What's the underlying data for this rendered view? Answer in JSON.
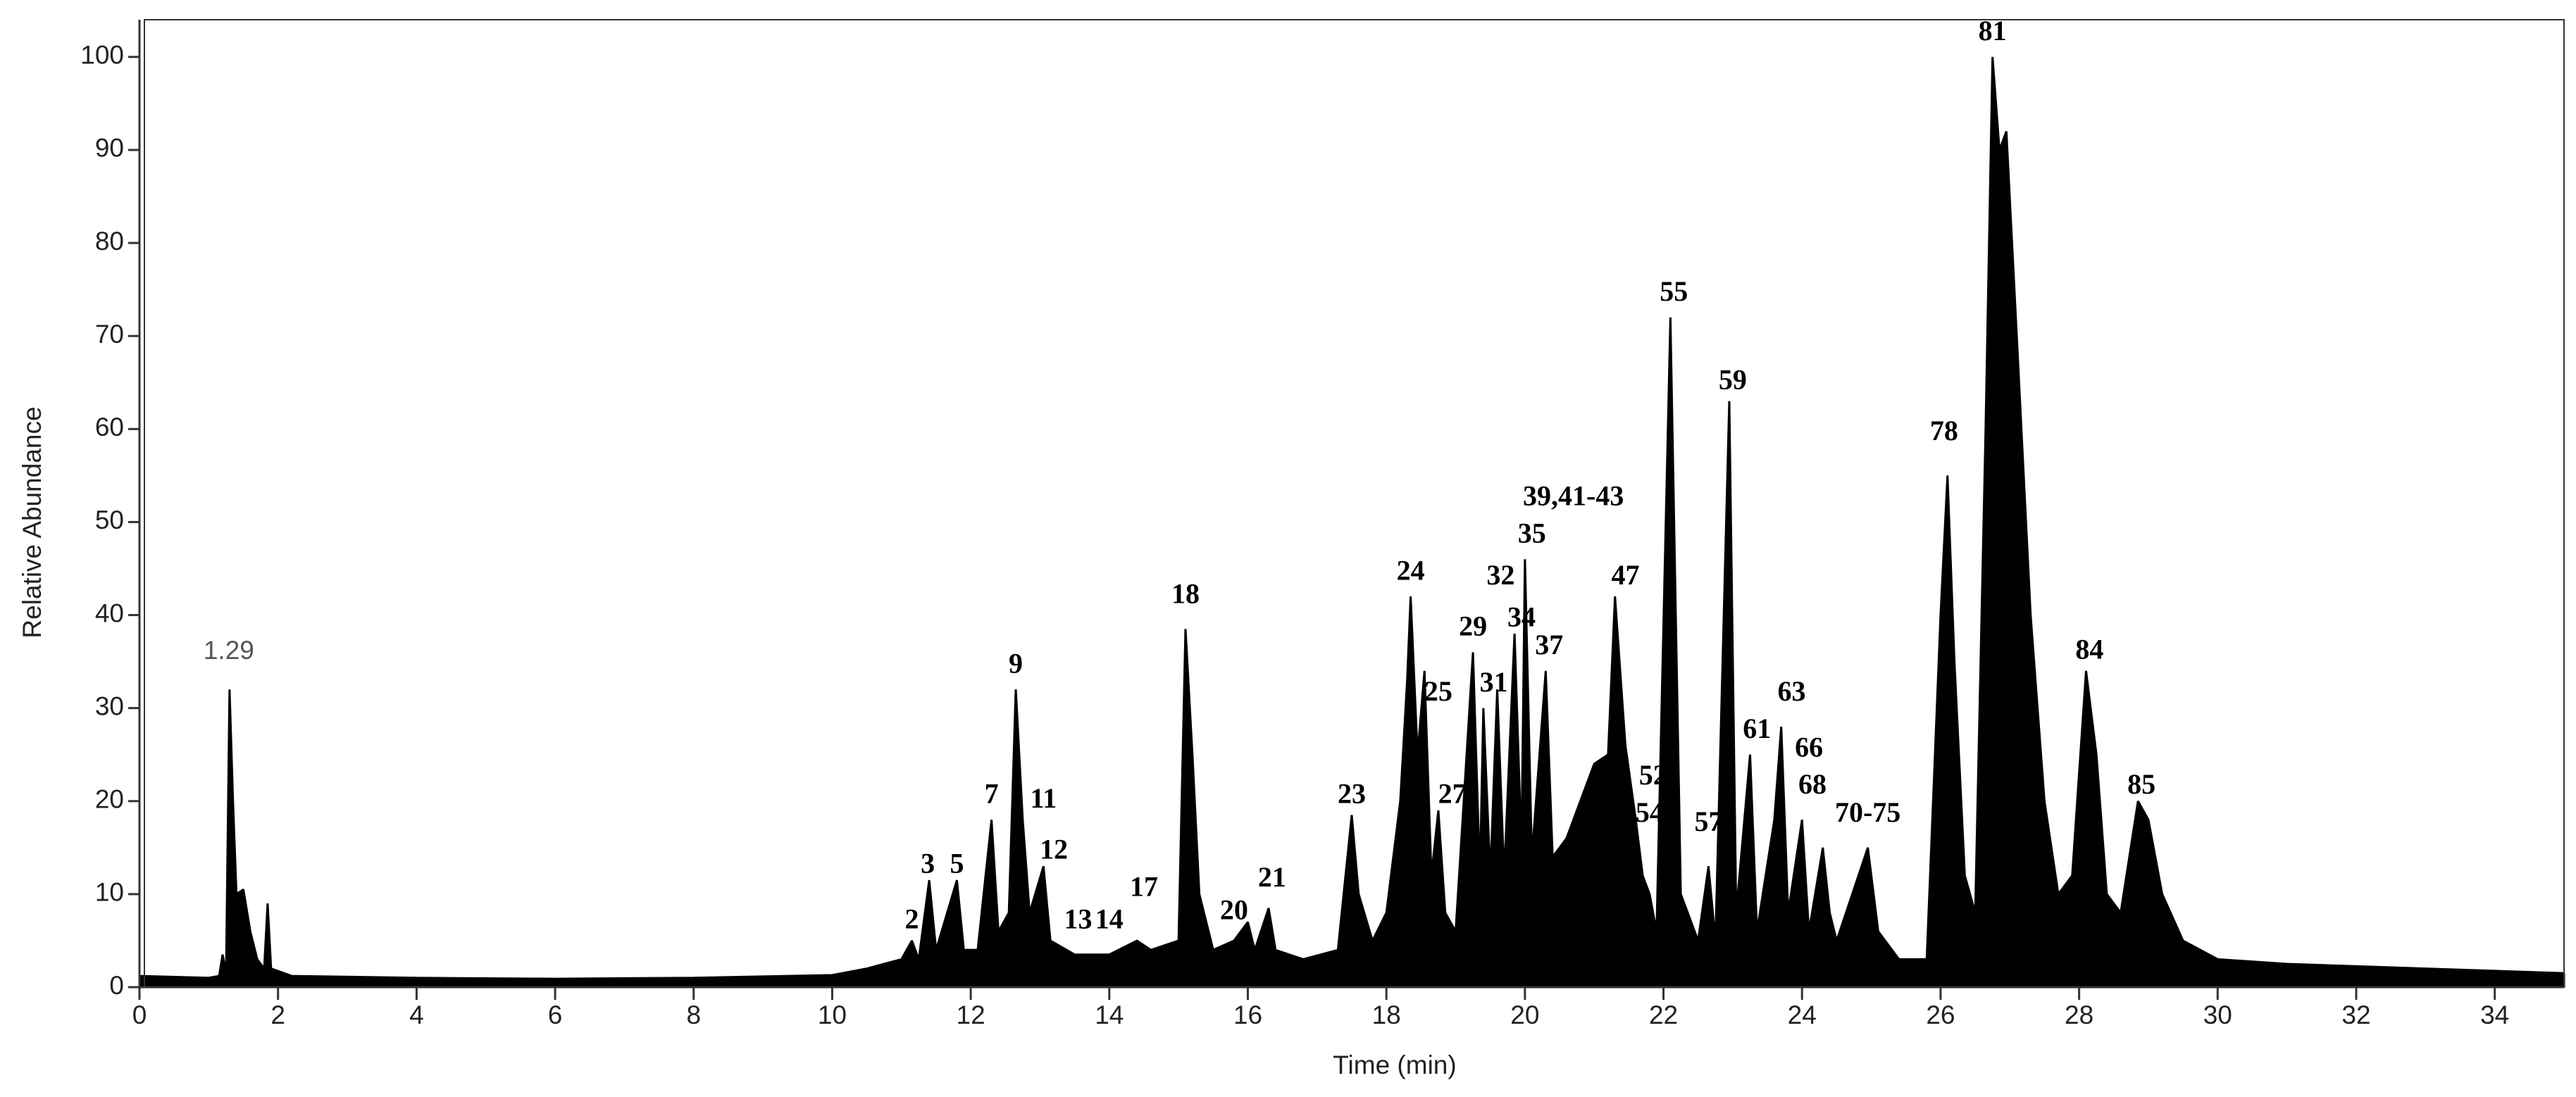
{
  "chart_data": {
    "type": "area",
    "x_label": "Time (min)",
    "y_label": "Relative Abundance",
    "color": "#000000",
    "xlim": [
      0,
      35
    ],
    "xticks": [
      0,
      2,
      4,
      6,
      8,
      10,
      12,
      14,
      16,
      18,
      20,
      22,
      24,
      26,
      28,
      30,
      32,
      34
    ],
    "ylim": [
      0,
      104
    ],
    "yticks": [
      0,
      10,
      20,
      30,
      40,
      50,
      60,
      70,
      80,
      90,
      100
    ],
    "x": [
      0,
      1.0,
      1.15,
      1.2,
      1.25,
      1.3,
      1.35,
      1.4,
      1.5,
      1.6,
      1.7,
      1.8,
      1.85,
      1.9,
      2.2,
      4,
      6,
      8,
      10,
      10.5,
      11,
      11.15,
      11.25,
      11.4,
      11.5,
      11.8,
      11.9,
      12.1,
      12.3,
      12.4,
      12.55,
      12.65,
      12.75,
      12.85,
      13.05,
      13.15,
      13.5,
      14,
      14.4,
      14.6,
      15.0,
      15.1,
      15.2,
      15.3,
      15.5,
      15.8,
      16.0,
      16.1,
      16.3,
      16.4,
      16.8,
      17.3,
      17.5,
      17.6,
      17.8,
      18.0,
      18.2,
      18.3,
      18.35,
      18.45,
      18.55,
      18.65,
      18.75,
      18.85,
      19.0,
      19.25,
      19.35,
      19.4,
      19.5,
      19.6,
      19.7,
      19.85,
      19.95,
      20.0,
      20.1,
      20.3,
      20.4,
      20.6,
      20.8,
      21.0,
      21.2,
      21.3,
      21.45,
      21.6,
      21.7,
      21.8,
      21.9,
      22.1,
      22.25,
      22.5,
      22.65,
      22.75,
      22.95,
      23.05,
      23.25,
      23.35,
      23.6,
      23.7,
      23.8,
      24.0,
      24.1,
      24.3,
      24.4,
      24.5,
      24.95,
      25.1,
      25.4,
      25.8,
      26.0,
      26.1,
      26.2,
      26.35,
      26.5,
      26.65,
      26.75,
      26.85,
      26.95,
      27.1,
      27.3,
      27.5,
      27.7,
      27.9,
      28.1,
      28.25,
      28.4,
      28.6,
      28.85,
      29.0,
      29.2,
      29.5,
      30,
      31,
      33,
      35
    ],
    "values": [
      1.2,
      1.0,
      1.2,
      3.5,
      1.5,
      32,
      20,
      10,
      10.5,
      6,
      3,
      2,
      9,
      2,
      1.2,
      1.0,
      0.9,
      1.0,
      1.3,
      2,
      3,
      5,
      3,
      11.5,
      4,
      11.5,
      4,
      4,
      18,
      6,
      8,
      32,
      18,
      8,
      13,
      5,
      3.5,
      3.5,
      5,
      4,
      5,
      38.5,
      25,
      10,
      4,
      5,
      7,
      4,
      8.5,
      4,
      3,
      4,
      18.5,
      10,
      5,
      8,
      20,
      33,
      42,
      25,
      34,
      12,
      19,
      8,
      6,
      36,
      12,
      30,
      12,
      32,
      12,
      38,
      15,
      46,
      14,
      34,
      14,
      16,
      20,
      24,
      25,
      42,
      26,
      18,
      12,
      10,
      6,
      72,
      10,
      5,
      13,
      5,
      63,
      8,
      25,
      6,
      18,
      28,
      8,
      18,
      6,
      15,
      8,
      5,
      15,
      6,
      3,
      3,
      40,
      55,
      35,
      12,
      8,
      60,
      100,
      90,
      92,
      70,
      40,
      20,
      10,
      12,
      34,
      25,
      10,
      8,
      20,
      18,
      10,
      5,
      3,
      2.5,
      2,
      1.5
    ],
    "annotations": [
      {
        "text": "1.29",
        "x": 1.29,
        "y": 36
      },
      {
        "text": "2",
        "x": 11.15,
        "y": 7
      },
      {
        "text": "3",
        "x": 11.38,
        "y": 13
      },
      {
        "text": "5",
        "x": 11.8,
        "y": 13
      },
      {
        "text": "7",
        "x": 12.3,
        "y": 20.5
      },
      {
        "text": "9",
        "x": 12.65,
        "y": 34.5
      },
      {
        "text": "11",
        "x": 13.05,
        "y": 20
      },
      {
        "text": "12",
        "x": 13.2,
        "y": 14.5
      },
      {
        "text": "13",
        "x": 13.55,
        "y": 7
      },
      {
        "text": "14",
        "x": 14.0,
        "y": 7
      },
      {
        "text": "17",
        "x": 14.5,
        "y": 10.5
      },
      {
        "text": "18",
        "x": 15.1,
        "y": 42
      },
      {
        "text": "20",
        "x": 15.8,
        "y": 8
      },
      {
        "text": "21",
        "x": 16.35,
        "y": 11.5
      },
      {
        "text": "23",
        "x": 17.5,
        "y": 20.5
      },
      {
        "text": "24",
        "x": 18.35,
        "y": 44.5
      },
      {
        "text": "25",
        "x": 18.75,
        "y": 31.5
      },
      {
        "text": "27",
        "x": 18.95,
        "y": 20.5
      },
      {
        "text": "29",
        "x": 19.25,
        "y": 38.5
      },
      {
        "text": "31",
        "x": 19.55,
        "y": 32.5
      },
      {
        "text": "32",
        "x": 19.65,
        "y": 44
      },
      {
        "text": "34",
        "x": 19.95,
        "y": 39.5
      },
      {
        "text": "35",
        "x": 20.1,
        "y": 48.5
      },
      {
        "text": "37",
        "x": 20.35,
        "y": 36.5
      },
      {
        "text": "39,41-43",
        "x": 20.7,
        "y": 52.5
      },
      {
        "text": "47",
        "x": 21.45,
        "y": 44
      },
      {
        "text": "52",
        "x": 21.85,
        "y": 22.5
      },
      {
        "text": "54",
        "x": 21.8,
        "y": 18.5
      },
      {
        "text": "55",
        "x": 22.15,
        "y": 74.5
      },
      {
        "text": "57",
        "x": 22.65,
        "y": 17.5
      },
      {
        "text": "59",
        "x": 23.0,
        "y": 65
      },
      {
        "text": "61",
        "x": 23.35,
        "y": 27.5
      },
      {
        "text": "63",
        "x": 23.85,
        "y": 31.5
      },
      {
        "text": "66",
        "x": 24.1,
        "y": 25.5
      },
      {
        "text": "68",
        "x": 24.15,
        "y": 21.5
      },
      {
        "text": "70-75",
        "x": 24.95,
        "y": 18.5
      },
      {
        "text": "78",
        "x": 26.05,
        "y": 59.5
      },
      {
        "text": "81",
        "x": 26.75,
        "y": 102.5
      },
      {
        "text": "84",
        "x": 28.15,
        "y": 36
      },
      {
        "text": "85",
        "x": 28.9,
        "y": 21.5
      }
    ]
  }
}
